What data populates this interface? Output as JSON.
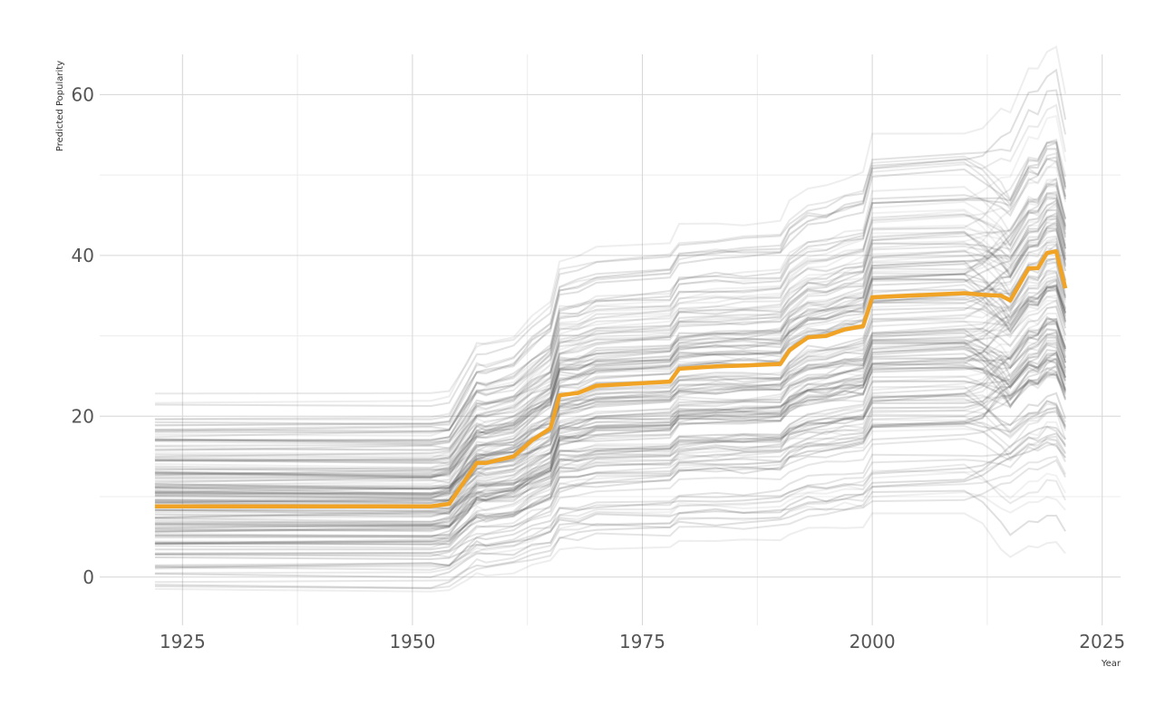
{
  "chart_data": {
    "type": "line",
    "title": "",
    "xlabel": "Year",
    "ylabel": "Predicted Popularity",
    "xlim": [
      1916,
      2027
    ],
    "ylim": [
      -6,
      65
    ],
    "x_ticks": [
      1925,
      1950,
      1975,
      2000,
      2025
    ],
    "y_ticks": [
      0,
      20,
      40,
      60
    ],
    "x_tick_labels": [
      "1925",
      "1950",
      "1975",
      "2000",
      "2025"
    ],
    "y_tick_labels": [
      "0",
      "20",
      "40",
      "60"
    ],
    "grid": true,
    "legend": "none",
    "colors": {
      "ice_lines": "#4d4d4d",
      "pdp_line": "#f0a324"
    },
    "x": [
      1922,
      1952,
      1954,
      1956,
      1957,
      1958,
      1961,
      1963,
      1965,
      1966,
      1968,
      1970,
      1978,
      1979,
      1983,
      1986,
      1990,
      1991,
      1993,
      1995,
      1997,
      1999,
      2000,
      2010,
      2012,
      2014,
      2015,
      2017,
      2018,
      2019,
      2020,
      2021
    ],
    "series": [
      {
        "name": "",
        "role": "pdp",
        "values": [
          8.8,
          8.8,
          9.1,
          12.5,
          14.2,
          14.2,
          15.0,
          17.0,
          18.5,
          22.6,
          22.9,
          23.8,
          24.3,
          25.9,
          26.2,
          26.3,
          26.5,
          28.2,
          29.8,
          30.0,
          30.8,
          31.2,
          34.8,
          35.3,
          35.1,
          35.0,
          34.4,
          38.4,
          38.4,
          40.3,
          40.5,
          35.9
        ]
      }
    ]
  }
}
